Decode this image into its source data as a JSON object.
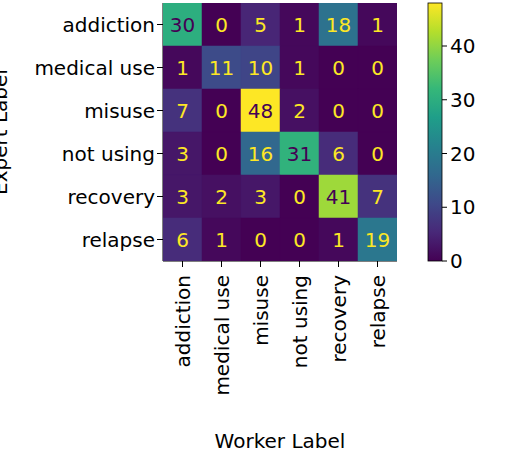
{
  "chart_data": {
    "type": "heatmap",
    "xlabel": "Worker Label",
    "ylabel": "Expert Label",
    "x_categories": [
      "addiction",
      "medical use",
      "misuse",
      "not using",
      "recovery",
      "relapse"
    ],
    "y_categories": [
      "addiction",
      "medical use",
      "misuse",
      "not using",
      "recovery",
      "relapse"
    ],
    "cells": [
      [
        30,
        0,
        5,
        1,
        18,
        1
      ],
      [
        1,
        11,
        10,
        1,
        0,
        0
      ],
      [
        7,
        0,
        48,
        2,
        0,
        0
      ],
      [
        3,
        0,
        16,
        31,
        6,
        0
      ],
      [
        3,
        2,
        3,
        0,
        41,
        7
      ],
      [
        6,
        1,
        0,
        0,
        1,
        19
      ]
    ],
    "color": "viridis",
    "colorbar": {
      "lim": [
        0,
        48
      ],
      "ticks": [
        0,
        10,
        20,
        30,
        40
      ]
    },
    "data_labels": true,
    "grid": false
  }
}
